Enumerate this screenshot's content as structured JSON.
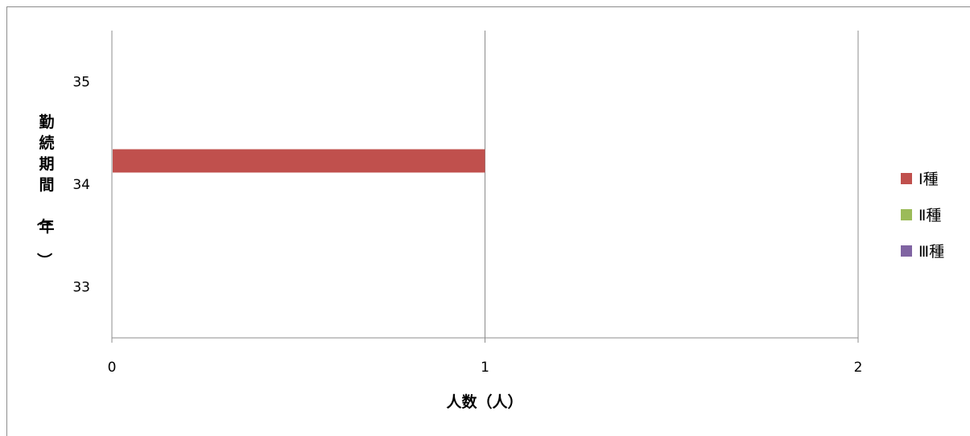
{
  "chart_data": {
    "type": "bar",
    "orientation": "horizontal",
    "xlabel": "人数（人）",
    "ylabel": "勤続期間（年）",
    "xlim": [
      0,
      2
    ],
    "xticks": [
      0,
      1,
      2
    ],
    "ylim": [
      32.5,
      35.5
    ],
    "yticks": [
      33,
      34,
      35
    ],
    "grid": "vertical",
    "legend_position": "right",
    "series": [
      {
        "name": "Ⅰ種",
        "color": "#c0504d",
        "points": [
          {
            "y": 34,
            "x": 1
          }
        ]
      },
      {
        "name": "Ⅱ種",
        "color": "#9bbb59",
        "points": []
      },
      {
        "name": "Ⅲ種",
        "color": "#8064a2",
        "points": []
      }
    ]
  }
}
